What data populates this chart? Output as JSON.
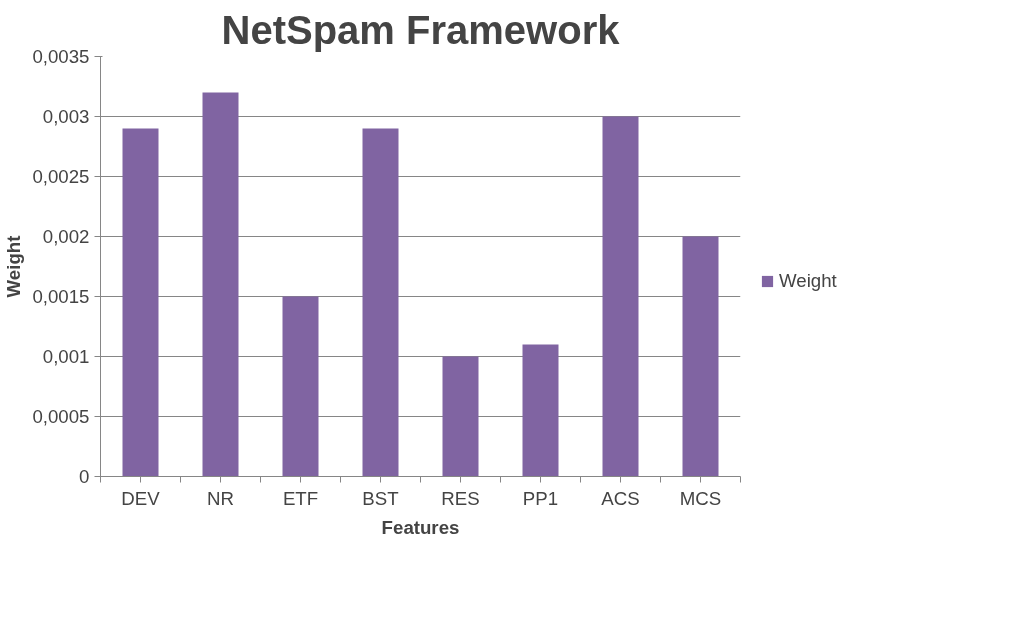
{
  "chart_data": {
    "type": "bar",
    "title": "NetSpam Framework",
    "xlabel": "Features",
    "ylabel": "Weight",
    "categories": [
      "DEV",
      "NR",
      "ETF",
      "BST",
      "RES",
      "PP1",
      "ACS",
      "MCS"
    ],
    "series": [
      {
        "name": "Weight",
        "color": "#8064a2",
        "values": [
          0.0029,
          0.0032,
          0.0015,
          0.0029,
          0.001,
          0.0011,
          0.003,
          0.002
        ]
      }
    ],
    "ylim": [
      0,
      0.0035
    ],
    "yticks": [
      0,
      {
        "value": 0.0005,
        "label": "0,0005"
      },
      {
        "value": 0.001,
        "label": "0,001"
      },
      {
        "value": 0.0015,
        "label": "0,0015"
      },
      {
        "value": 0.002,
        "label": "0,002"
      },
      {
        "value": 0.0025,
        "label": "0,0025"
      },
      {
        "value": 0.003,
        "label": "0,003"
      },
      {
        "value": 0.0035,
        "label": "0,0035"
      }
    ],
    "grid": "y",
    "legend": "right"
  }
}
